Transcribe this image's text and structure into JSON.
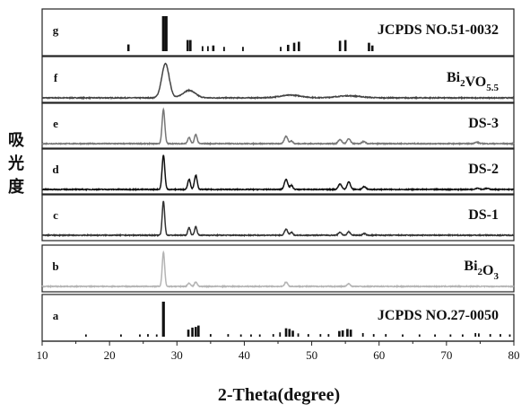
{
  "chart_data": {
    "type": "line",
    "xlabel": "2-Theta(degree)",
    "ylabel": "吸光度",
    "xlim": [
      10,
      80
    ],
    "xticks": [
      10,
      20,
      30,
      40,
      50,
      60,
      70,
      80
    ],
    "panels": [
      {
        "letter": "g",
        "name": "JCPDS NO.51-0032",
        "kind": "sticks",
        "color": "#111111",
        "peaks": [
          [
            22.8,
            0.17
          ],
          [
            28.0,
            1.0
          ],
          [
            28.4,
            1.0
          ],
          [
            31.6,
            0.3
          ],
          [
            32.0,
            0.3
          ],
          [
            33.8,
            0.12
          ],
          [
            34.6,
            0.12
          ],
          [
            35.4,
            0.14
          ],
          [
            37.0,
            0.1
          ],
          [
            39.8,
            0.1
          ],
          [
            45.4,
            0.1
          ],
          [
            46.5,
            0.16
          ],
          [
            47.4,
            0.22
          ],
          [
            48.1,
            0.25
          ],
          [
            54.2,
            0.28
          ],
          [
            55.0,
            0.3
          ],
          [
            58.5,
            0.22
          ],
          [
            59.0,
            0.14
          ]
        ]
      },
      {
        "letter": "f",
        "name": "Bi2VO5.5",
        "kind": "curve",
        "color": "#444444",
        "peaks": [
          [
            28.3,
            1.0,
            0.55
          ],
          [
            31.8,
            0.22,
            0.9
          ],
          [
            46.9,
            0.08,
            1.6
          ],
          [
            55.5,
            0.06,
            1.8
          ]
        ]
      },
      {
        "letter": "e",
        "name": "DS-3",
        "kind": "curve",
        "color": "#777777",
        "peaks": [
          [
            28.0,
            1.0,
            0.2
          ],
          [
            31.8,
            0.18,
            0.2
          ],
          [
            32.8,
            0.27,
            0.2
          ],
          [
            46.2,
            0.22,
            0.25
          ],
          [
            47.0,
            0.08,
            0.2
          ],
          [
            54.2,
            0.12,
            0.25
          ],
          [
            55.5,
            0.14,
            0.25
          ],
          [
            57.7,
            0.06,
            0.25
          ],
          [
            74.5,
            0.04,
            0.3
          ]
        ]
      },
      {
        "letter": "d",
        "name": "DS-2",
        "kind": "curve",
        "color": "#111111",
        "peaks": [
          [
            28.0,
            1.0,
            0.2
          ],
          [
            31.8,
            0.3,
            0.2
          ],
          [
            32.8,
            0.42,
            0.2
          ],
          [
            46.2,
            0.3,
            0.25
          ],
          [
            47.0,
            0.12,
            0.2
          ],
          [
            54.2,
            0.16,
            0.25
          ],
          [
            55.5,
            0.22,
            0.25
          ],
          [
            57.8,
            0.08,
            0.25
          ],
          [
            74.6,
            0.04,
            0.3
          ],
          [
            76.0,
            0.03,
            0.3
          ]
        ]
      },
      {
        "letter": "c",
        "name": "DS-1",
        "kind": "curve",
        "color": "#333333",
        "peaks": [
          [
            28.0,
            1.0,
            0.18
          ],
          [
            31.8,
            0.22,
            0.18
          ],
          [
            32.8,
            0.25,
            0.18
          ],
          [
            46.2,
            0.18,
            0.22
          ],
          [
            47.0,
            0.08,
            0.2
          ],
          [
            54.2,
            0.09,
            0.22
          ],
          [
            55.5,
            0.1,
            0.22
          ],
          [
            57.8,
            0.05,
            0.22
          ]
        ]
      },
      {
        "letter": "b",
        "name": "Bi2O3",
        "kind": "curve",
        "color": "#b4b4b4",
        "peaks": [
          [
            28.0,
            1.0,
            0.18
          ],
          [
            31.8,
            0.1,
            0.2
          ],
          [
            32.8,
            0.13,
            0.2
          ],
          [
            46.2,
            0.13,
            0.22
          ],
          [
            55.5,
            0.08,
            0.22
          ]
        ]
      },
      {
        "letter": "a",
        "name": "JCPDS NO.27-0050",
        "kind": "sticks",
        "color": "#111111",
        "peaks": [
          [
            16.5,
            0.04
          ],
          [
            21.7,
            0.04
          ],
          [
            24.5,
            0.04
          ],
          [
            25.7,
            0.05
          ],
          [
            27.0,
            0.04
          ],
          [
            28.0,
            1.0
          ],
          [
            31.7,
            0.18
          ],
          [
            32.3,
            0.24
          ],
          [
            32.8,
            0.26
          ],
          [
            33.2,
            0.3
          ],
          [
            35.0,
            0.05
          ],
          [
            37.6,
            0.05
          ],
          [
            39.5,
            0.04
          ],
          [
            41.0,
            0.04
          ],
          [
            42.3,
            0.04
          ],
          [
            44.3,
            0.05
          ],
          [
            45.3,
            0.1
          ],
          [
            46.2,
            0.22
          ],
          [
            46.7,
            0.2
          ],
          [
            47.2,
            0.15
          ],
          [
            48.0,
            0.07
          ],
          [
            49.5,
            0.05
          ],
          [
            51.3,
            0.05
          ],
          [
            52.5,
            0.05
          ],
          [
            54.1,
            0.14
          ],
          [
            54.6,
            0.16
          ],
          [
            55.3,
            0.2
          ],
          [
            55.8,
            0.18
          ],
          [
            57.6,
            0.08
          ],
          [
            59.2,
            0.05
          ],
          [
            61.0,
            0.05
          ],
          [
            63.5,
            0.04
          ],
          [
            66.0,
            0.04
          ],
          [
            68.3,
            0.04
          ],
          [
            70.6,
            0.04
          ],
          [
            72.4,
            0.04
          ],
          [
            74.3,
            0.08
          ],
          [
            74.8,
            0.07
          ],
          [
            76.5,
            0.05
          ],
          [
            78.0,
            0.05
          ],
          [
            79.4,
            0.04
          ]
        ]
      }
    ]
  }
}
